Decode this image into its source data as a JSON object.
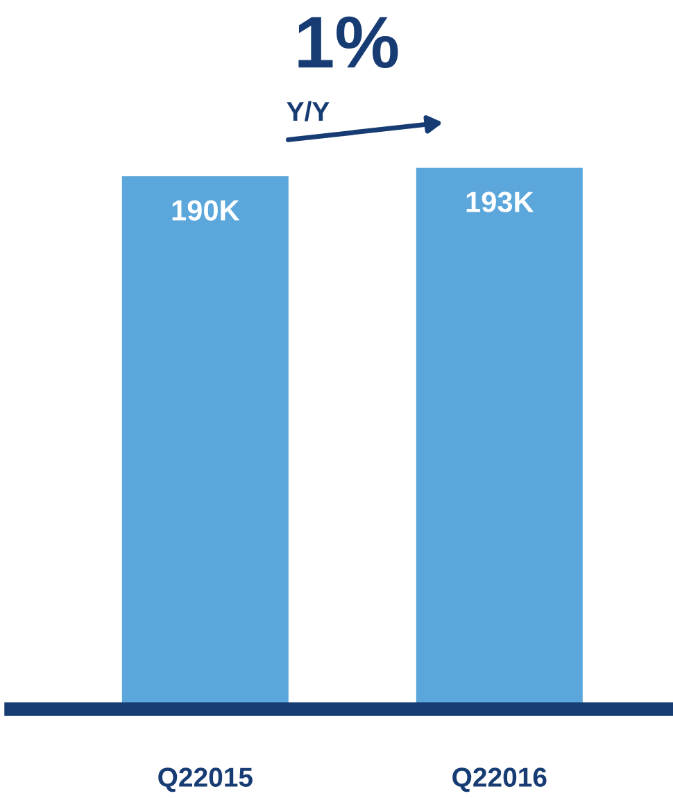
{
  "chart_data": {
    "type": "bar",
    "categories": [
      "Q22015",
      "Q22016"
    ],
    "values": [
      190,
      193
    ],
    "value_labels": [
      "190K",
      "193K"
    ],
    "color": "#5ba7dc",
    "annotations": [
      "1%",
      "Y/Y"
    ],
    "grid": false,
    "legend": false
  }
}
